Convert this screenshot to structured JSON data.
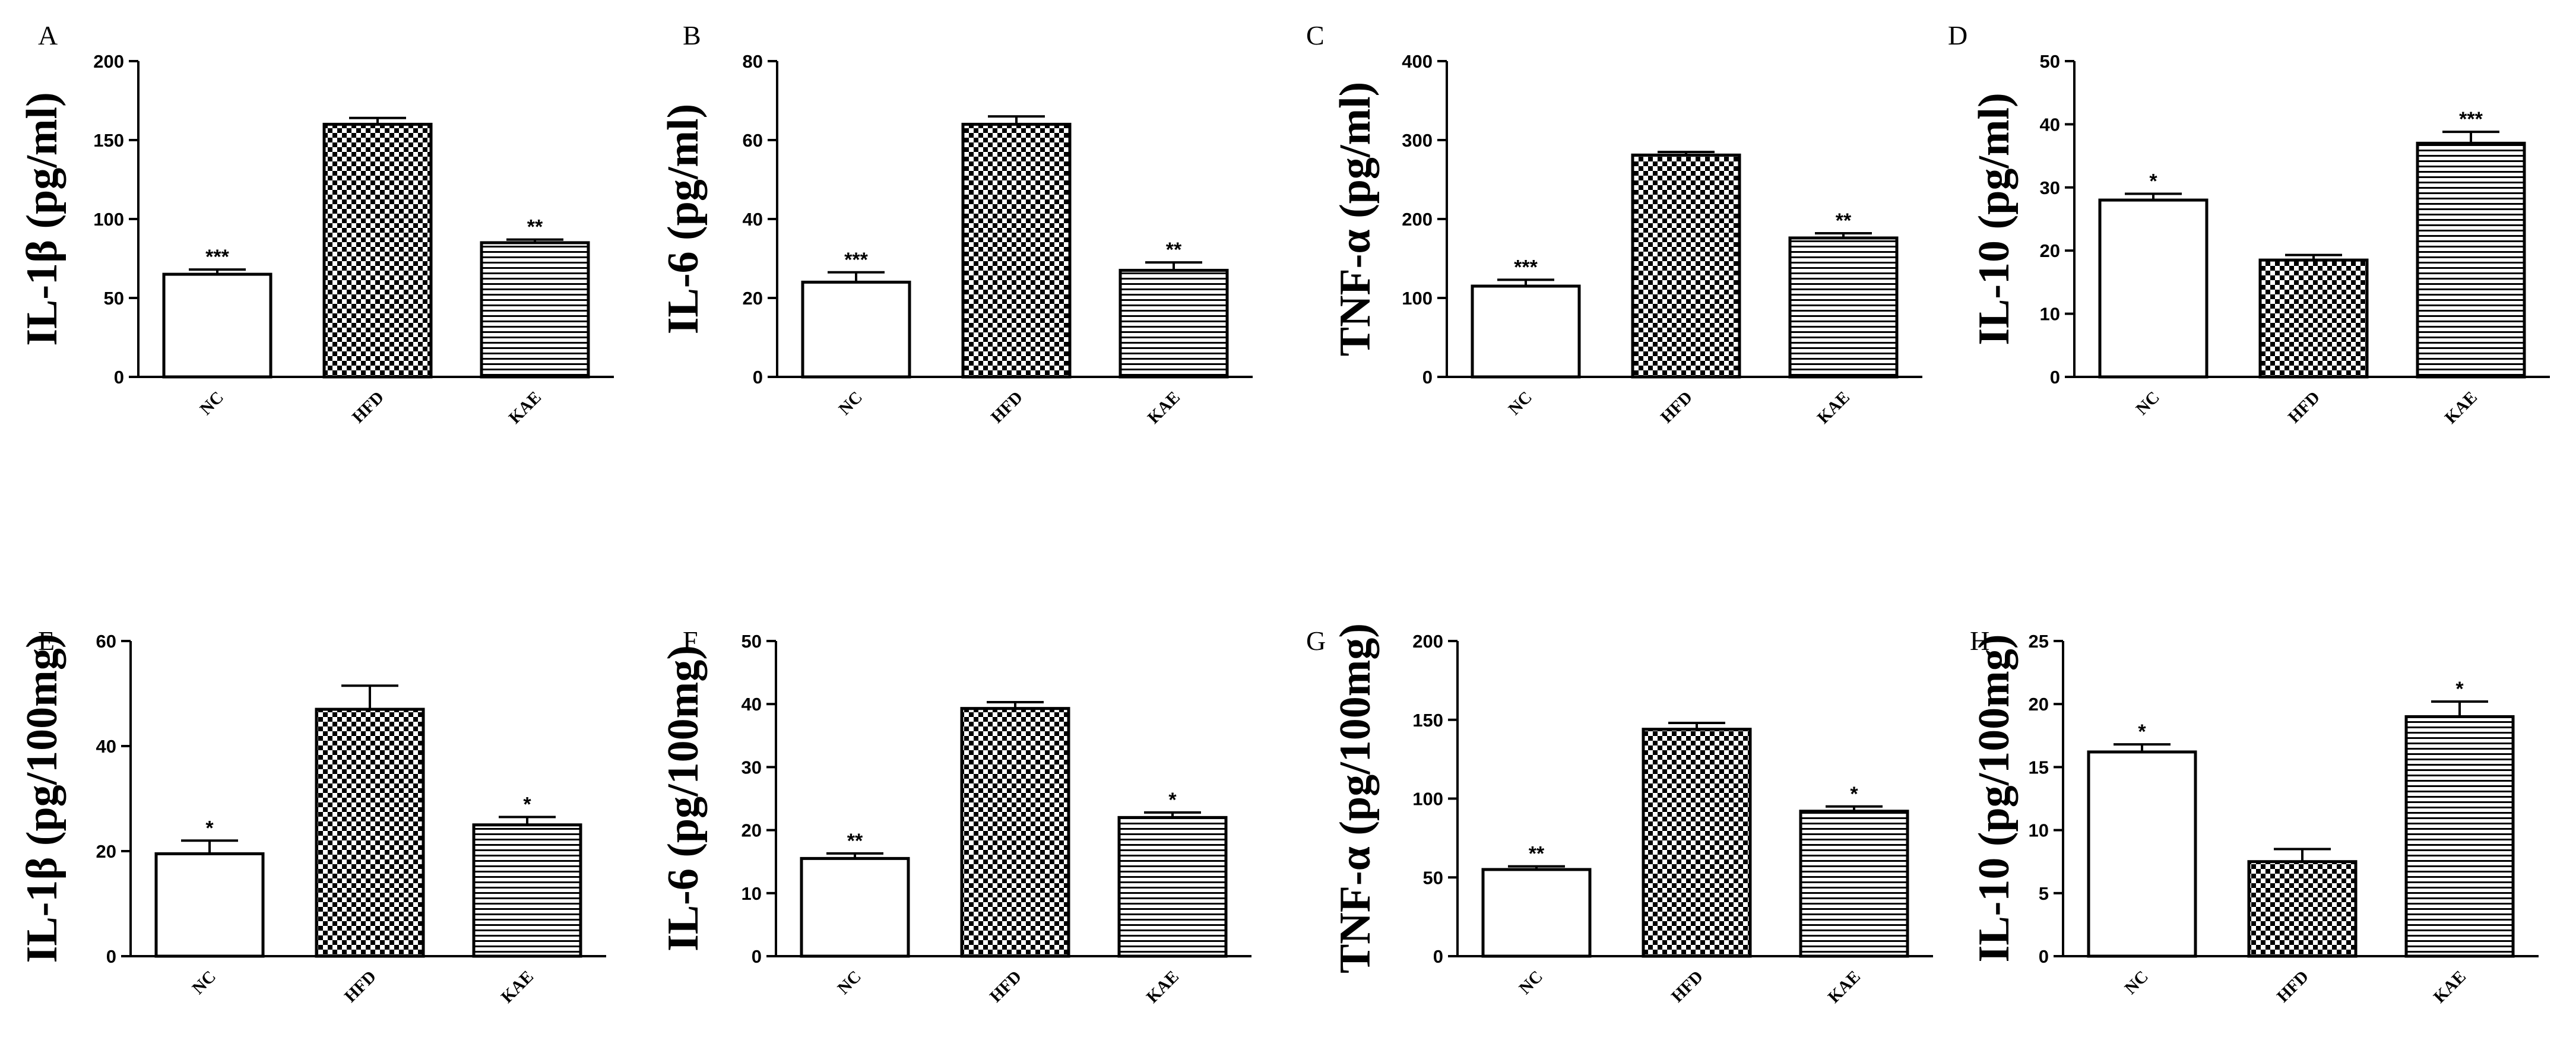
{
  "figure": {
    "description_labels": "Bar charts of inflammatory cytokines for groups NC, HFD, KAE"
  },
  "chart_data": [
    {
      "type": "bar",
      "panel": "A",
      "ylabel": "IL-1β (pg/ml)",
      "categories": [
        "NC",
        "HFD",
        "KAE"
      ],
      "values": [
        65,
        160,
        85
      ],
      "errors": [
        3,
        4,
        2
      ],
      "significance": [
        "***",
        "",
        "**"
      ],
      "ylim": [
        0,
        200
      ],
      "yticks": [
        0,
        50,
        100,
        150,
        200
      ]
    },
    {
      "type": "bar",
      "panel": "B",
      "ylabel": "IL-6 (pg/ml)",
      "categories": [
        "NC",
        "HFD",
        "KAE"
      ],
      "values": [
        24,
        64,
        27
      ],
      "errors": [
        2.5,
        2,
        2
      ],
      "significance": [
        "***",
        "",
        "**"
      ],
      "ylim": [
        0,
        80
      ],
      "yticks": [
        0,
        20,
        40,
        60,
        80
      ]
    },
    {
      "type": "bar",
      "panel": "C",
      "ylabel": "TNF-α (pg/ml)",
      "categories": [
        "NC",
        "HFD",
        "KAE"
      ],
      "values": [
        115,
        281,
        176
      ],
      "errors": [
        8,
        4,
        6
      ],
      "significance": [
        "***",
        "",
        "**"
      ],
      "ylim": [
        0,
        400
      ],
      "yticks": [
        0,
        100,
        200,
        300,
        400
      ]
    },
    {
      "type": "bar",
      "panel": "D",
      "ylabel": "IL-10 (pg/ml)",
      "categories": [
        "NC",
        "HFD",
        "KAE"
      ],
      "values": [
        28,
        18.5,
        37
      ],
      "errors": [
        1,
        0.8,
        1.8
      ],
      "significance": [
        "*",
        "",
        "***"
      ],
      "ylim": [
        0,
        50
      ],
      "yticks": [
        0,
        10,
        20,
        30,
        40,
        50
      ]
    },
    {
      "type": "bar",
      "panel": "E",
      "ylabel": "IL-1β (pg/100mg)",
      "categories": [
        "NC",
        "HFD",
        "KAE"
      ],
      "values": [
        19.5,
        47,
        25
      ],
      "errors": [
        2.5,
        4.5,
        1.5
      ],
      "significance": [
        "*",
        "",
        "*"
      ],
      "ylim": [
        0,
        60
      ],
      "yticks": [
        0,
        20,
        40,
        60
      ]
    },
    {
      "type": "bar",
      "panel": "F",
      "ylabel": "IL-6 (pg/100mg)",
      "categories": [
        "NC",
        "HFD",
        "KAE"
      ],
      "values": [
        15.5,
        39.3,
        22
      ],
      "errors": [
        0.8,
        1,
        0.8
      ],
      "significance": [
        "**",
        "",
        "*"
      ],
      "ylim": [
        0,
        50
      ],
      "yticks": [
        0,
        10,
        20,
        30,
        40,
        50
      ]
    },
    {
      "type": "bar",
      "panel": "G",
      "ylabel": "TNF-α (pg/100mg)",
      "categories": [
        "NC",
        "HFD",
        "KAE"
      ],
      "values": [
        55,
        144,
        92
      ],
      "errors": [
        2,
        4,
        3
      ],
      "significance": [
        "**",
        "",
        "*"
      ],
      "ylim": [
        0,
        200
      ],
      "yticks": [
        0,
        50,
        100,
        150,
        200
      ]
    },
    {
      "type": "bar",
      "panel": "H",
      "ylabel": "IL-10 (pg/100mg)",
      "categories": [
        "NC",
        "HFD",
        "KAE"
      ],
      "values": [
        16.2,
        7.5,
        19
      ],
      "errors": [
        0.6,
        1,
        1.2
      ],
      "significance": [
        "*",
        "",
        "*"
      ],
      "ylim": [
        0,
        25
      ],
      "yticks": [
        0,
        5,
        10,
        15,
        20,
        25
      ]
    }
  ]
}
